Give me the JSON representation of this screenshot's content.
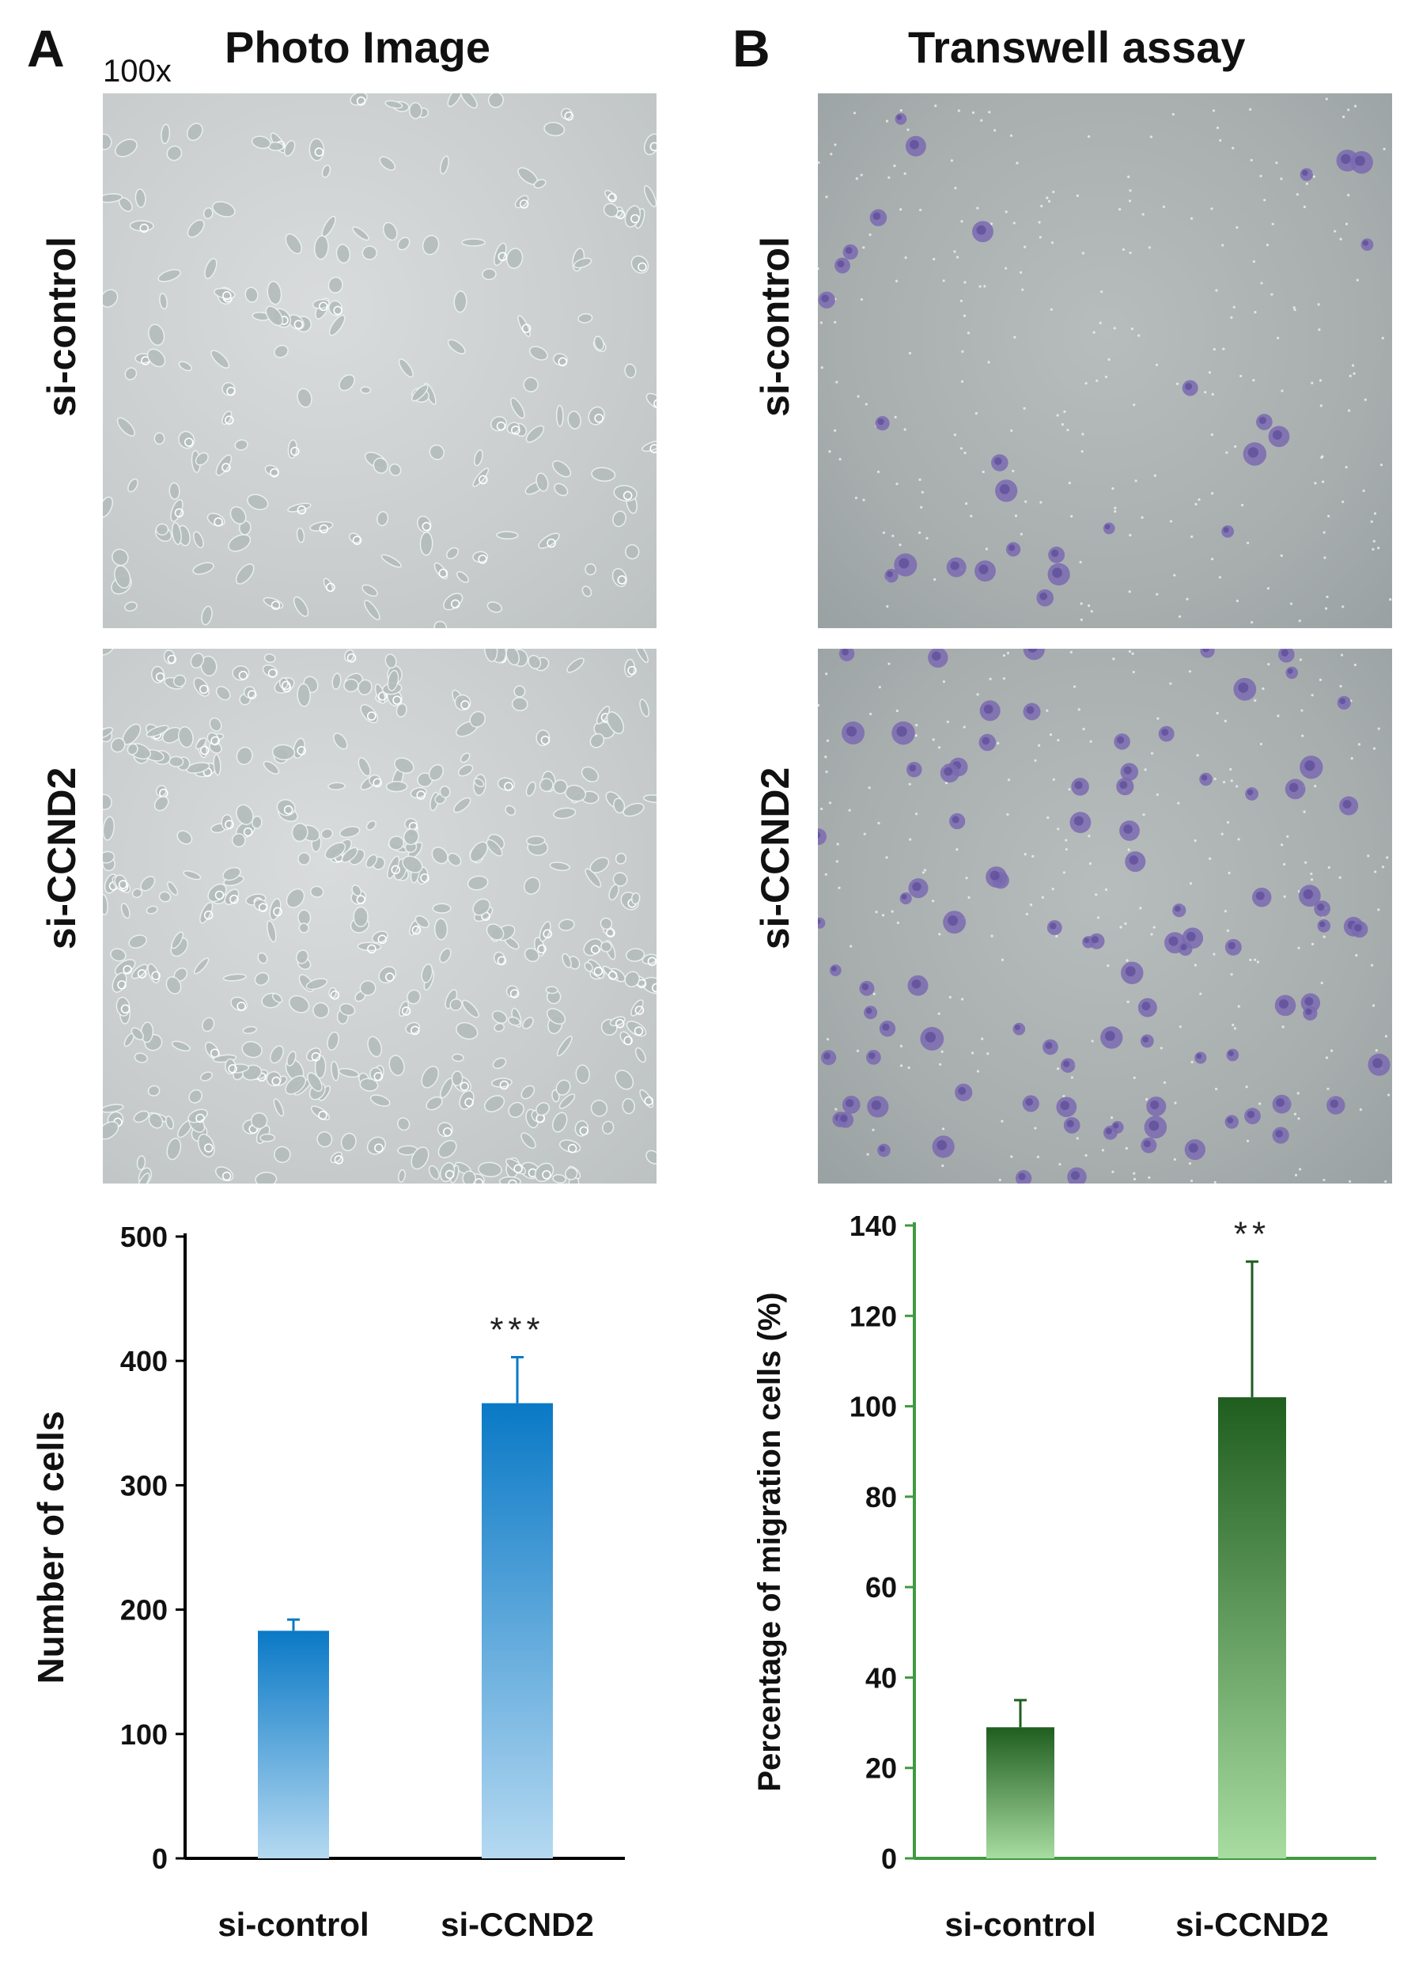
{
  "panels": {
    "A": {
      "letter": "A",
      "title": "Photo Image",
      "magnification": "100x"
    },
    "B": {
      "letter": "B",
      "title": "Transwell assay"
    }
  },
  "row_labels": {
    "top": "si-control",
    "bottom": "si-CCND2"
  },
  "chart_data": [
    {
      "type": "bar",
      "categories": [
        "si-control",
        "si-CCND2"
      ],
      "values": [
        183,
        366
      ],
      "errors": [
        9,
        37
      ],
      "annotations": [
        "",
        "***"
      ],
      "title": "",
      "xlabel": "",
      "ylabel": "Number of cells",
      "ylim": [
        0,
        500
      ],
      "yticks": [
        0,
        100,
        200,
        300,
        400,
        500
      ],
      "grid": false,
      "colors": {
        "bar_top": "#0a79c6",
        "bar_bottom": "#b5d9f1",
        "axis": "#000000"
      }
    },
    {
      "type": "bar",
      "categories": [
        "si-control",
        "si-CCND2"
      ],
      "values": [
        29,
        102
      ],
      "errors": [
        6,
        30
      ],
      "annotations": [
        "",
        "**"
      ],
      "title": "",
      "xlabel": "",
      "ylabel": "Percentage of  migration cells (%)",
      "ylim": [
        0,
        140
      ],
      "yticks": [
        0,
        20,
        40,
        60,
        80,
        100,
        120,
        140
      ],
      "grid": false,
      "colors": {
        "bar_top": "#1f5e1f",
        "bar_bottom": "#a8dca0",
        "axis": "#3f9a3f"
      }
    }
  ]
}
